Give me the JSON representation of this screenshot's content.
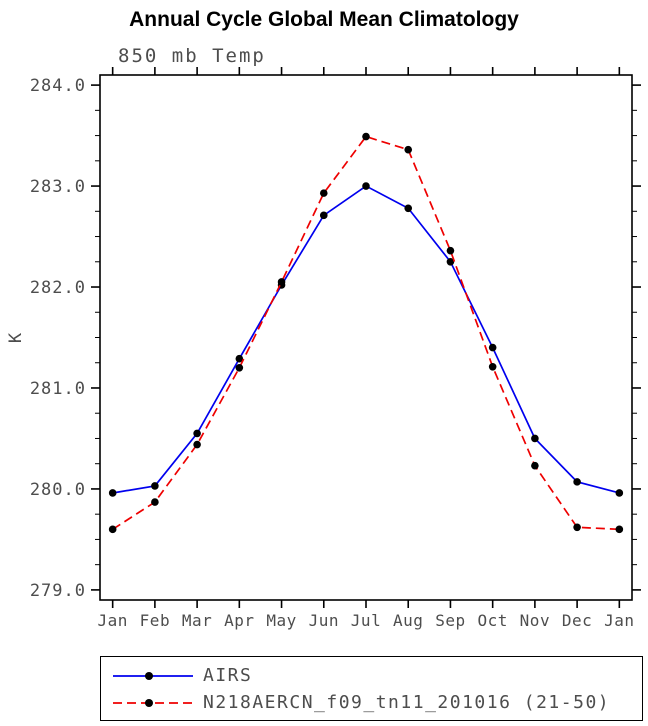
{
  "chart_data": {
    "type": "line",
    "title": "Annual Cycle Global Mean Climatology",
    "subtitle": "850 mb Temp",
    "xlabel": "",
    "ylabel": "K",
    "ylim": [
      278.9,
      284.1
    ],
    "yticks": [
      279.0,
      280.0,
      281.0,
      282.0,
      283.0,
      284.0
    ],
    "ytick_labels": [
      "279.0",
      "280.0",
      "281.0",
      "282.0",
      "283.0",
      "284.0"
    ],
    "categories": [
      "Jan",
      "Feb",
      "Mar",
      "Apr",
      "May",
      "Jun",
      "Jul",
      "Aug",
      "Sep",
      "Oct",
      "Nov",
      "Dec",
      "Jan"
    ],
    "grid": false,
    "legend_position": "bottom",
    "marker": "filled-black-circle",
    "series": [
      {
        "name": "AIRS",
        "color": "#0000ee",
        "style": "solid",
        "values": [
          279.96,
          280.03,
          280.55,
          281.29,
          282.02,
          282.71,
          283.0,
          282.78,
          282.25,
          281.4,
          280.5,
          280.07,
          279.96
        ]
      },
      {
        "name": "N218AERCN_f09_tn11_201016 (21-50)",
        "color": "#ee0000",
        "style": "dashed",
        "values": [
          279.6,
          279.87,
          280.44,
          281.2,
          282.05,
          282.93,
          283.49,
          283.36,
          282.36,
          281.21,
          280.23,
          279.62,
          279.6
        ]
      }
    ]
  },
  "colors": {
    "frame": "#000000",
    "labels": "#4d4d4d",
    "marker": "#000000",
    "background": "#ffffff"
  }
}
